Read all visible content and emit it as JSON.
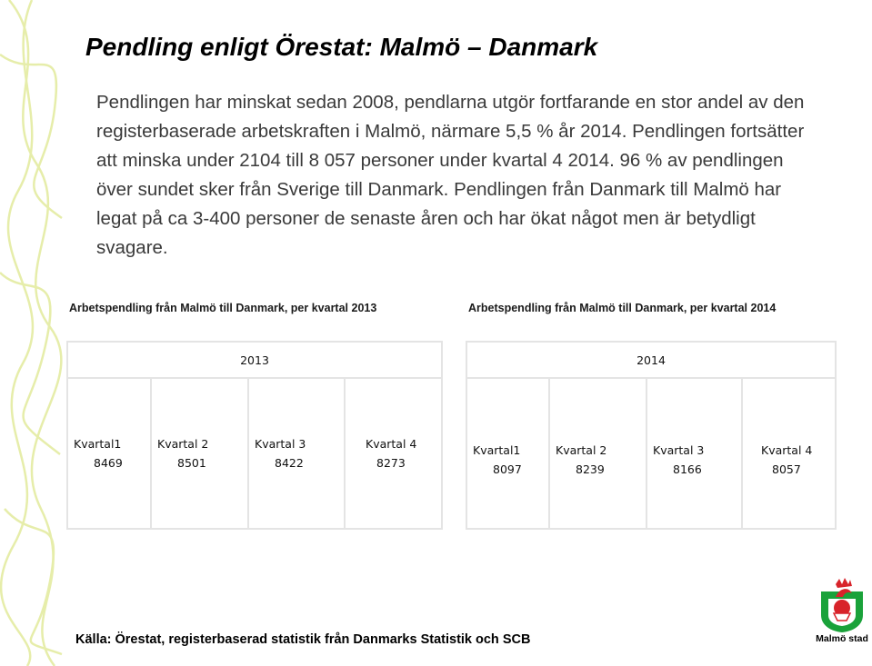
{
  "slide": {
    "title": "Pendling enligt Örestat: Malmö – Danmark",
    "body": "Pendlingen har minskat sedan 2008, pendlarna utgör fortfarande en stor andel av den registerbaserade arbetskraften i Malmö, närmare 5,5 % år 2014. Pendlingen fortsätter att minska under 2104 till 8 057 personer under kvartal 4 2014. 96 % av pendlingen över sundet sker från Sverige till Danmark. Pendlingen från Danmark till Malmö har legat på ca 3-400 personer de senaste åren och har ökat något men är betydligt svagare.",
    "source": "Källa: Örestat, registerbaserad statistik från Danmarks Statistik och SCB"
  },
  "tables": [
    {
      "caption": "Arbetspendling från Malmö till Danmark, per kvartal 2013",
      "year": "2013",
      "columns": [
        {
          "label": "Kvartal1",
          "value": "8469"
        },
        {
          "label": "Kvartal 2",
          "value": "8501"
        },
        {
          "label": "Kvartal 3",
          "value": "8422"
        },
        {
          "label": "Kvartal 4",
          "value": "8273"
        }
      ]
    },
    {
      "caption": "Arbetspendling från Malmö till Danmark, per kvartal 2014",
      "year": "2014",
      "columns": [
        {
          "label": "Kvartal1",
          "value": "8097"
        },
        {
          "label": "Kvartal 2",
          "value": "8239"
        },
        {
          "label": "Kvartal 3",
          "value": "8166"
        },
        {
          "label": "Kvartal 4",
          "value": "8057"
        }
      ]
    }
  ],
  "logo": {
    "text": "Malmö stad",
    "icon": "malmo-griffin-crest-icon"
  },
  "colors": {
    "swirl": "#e6edaa",
    "logo_green": "#1aa23a",
    "logo_red": "#d8232a"
  }
}
